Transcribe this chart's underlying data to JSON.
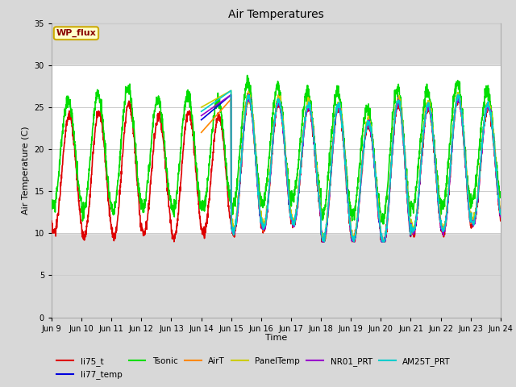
{
  "title": "Air Temperatures",
  "xlabel": "Time",
  "ylabel": "Air Temperature (C)",
  "ylim": [
    0,
    35
  ],
  "yticks": [
    0,
    5,
    10,
    15,
    20,
    25,
    30,
    35
  ],
  "xlim": [
    9,
    24
  ],
  "annotation_text": "WP_flux",
  "series": {
    "li75_t": {
      "color": "#dd0000",
      "lw": 1.2
    },
    "li77_temp": {
      "color": "#0000dd",
      "lw": 1.2
    },
    "Tsonic": {
      "color": "#00dd00",
      "lw": 1.2
    },
    "AirT": {
      "color": "#ff8800",
      "lw": 1.2
    },
    "PanelTemp": {
      "color": "#cccc00",
      "lw": 1.2
    },
    "NR01_PRT": {
      "color": "#9900cc",
      "lw": 1.2
    },
    "AM25T_PRT": {
      "color": "#00cccc",
      "lw": 1.2
    }
  },
  "white_band_y1": 10,
  "white_band_y2": 30,
  "fig_bg": "#d8d8d8",
  "plot_bg": "#d8d8d8"
}
